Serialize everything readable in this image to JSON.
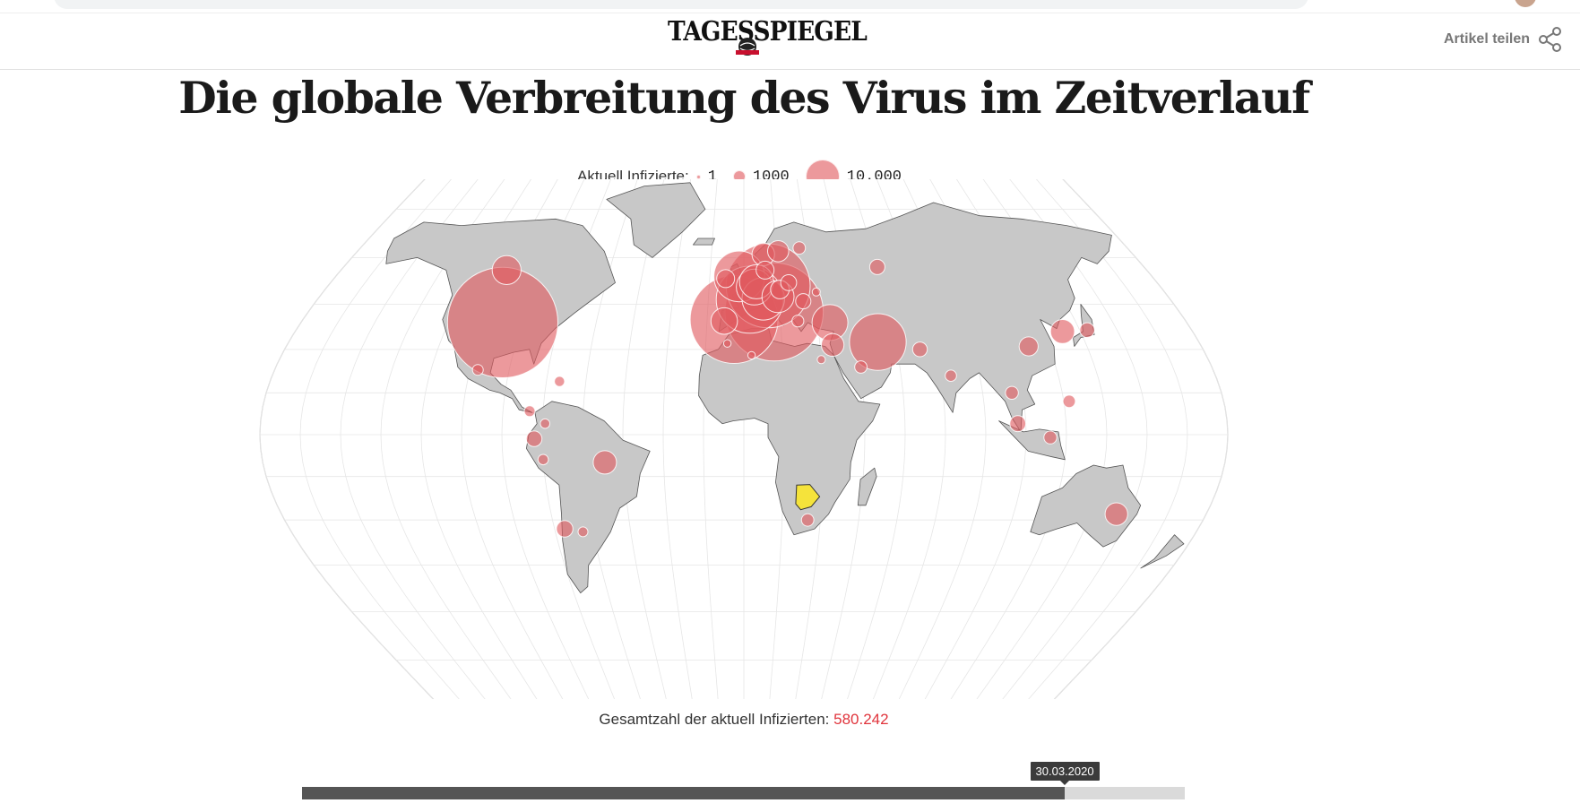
{
  "header": {
    "logo_text": "TAGESSPIEGEL",
    "share_label": "Artikel teilen"
  },
  "title": "Die globale Verbreitung des Virus im Zeitverlauf",
  "legend": {
    "label": "Aktuell Infizierte:",
    "items": [
      {
        "value": 1,
        "display": "1"
      },
      {
        "value": 1000,
        "display": "1000"
      },
      {
        "value": 10000,
        "display": "10.000"
      }
    ]
  },
  "map": {
    "land_color": "#c8c8c8",
    "land_stroke": "#555555",
    "bubble_color": "#e15a5f",
    "highlight_color": "#f5e33b",
    "highlight_country": "Botswana",
    "bubbles": [
      {
        "location": "USA",
        "lon": -98,
        "lat": 39,
        "infected": 95000
      },
      {
        "location": "Kanada",
        "lon": -106,
        "lat": 56,
        "infected": 6500
      },
      {
        "location": "Mexiko",
        "lon": -102,
        "lat": 23,
        "infected": 900
      },
      {
        "location": "Brasilien",
        "lon": -52,
        "lat": -10,
        "infected": 4200
      },
      {
        "location": "Ecuador",
        "lon": -78,
        "lat": -1.5,
        "infected": 1900
      },
      {
        "location": "Peru",
        "lon": -75,
        "lat": -9,
        "infected": 850
      },
      {
        "location": "Chile",
        "lon": -71,
        "lat": -33,
        "infected": 2100
      },
      {
        "location": "Argentinien",
        "lon": -64,
        "lat": -34,
        "infected": 750
      },
      {
        "location": "Kolumbien",
        "lon": -74,
        "lat": 4,
        "infected": 700
      },
      {
        "location": "Panama",
        "lon": -80,
        "lat": 8.5,
        "infected": 900
      },
      {
        "location": "Dominikanische Republik",
        "lon": -70,
        "lat": 19,
        "infected": 800
      },
      {
        "location": "Spanien",
        "lon": -4,
        "lat": 40,
        "infected": 60000
      },
      {
        "location": "Italien",
        "lon": 12.5,
        "lat": 42.5,
        "infected": 75000
      },
      {
        "location": "Frankreich",
        "lon": 2.5,
        "lat": 46.5,
        "infected": 35000
      },
      {
        "location": "Deutschland",
        "lon": 10.5,
        "lat": 51,
        "infected": 55000
      },
      {
        "location": "Großbritannien",
        "lon": -2,
        "lat": 54,
        "infected": 20000
      },
      {
        "location": "Schweiz",
        "lon": 8.2,
        "lat": 46.8,
        "infected": 14000
      },
      {
        "location": "Niederlande",
        "lon": 5.5,
        "lat": 52.3,
        "infected": 9000
      },
      {
        "location": "Belgien",
        "lon": 4.5,
        "lat": 50.6,
        "infected": 10000
      },
      {
        "location": "Österreich",
        "lon": 14.5,
        "lat": 47.5,
        "infected": 8000
      },
      {
        "location": "Portugal",
        "lon": -8,
        "lat": 39.5,
        "infected": 5500
      },
      {
        "location": "Norwegen",
        "lon": 9,
        "lat": 61,
        "infected": 4000
      },
      {
        "location": "Schweden",
        "lon": 16,
        "lat": 62,
        "infected": 3500
      },
      {
        "location": "Dänemark",
        "lon": 9.5,
        "lat": 56,
        "infected": 2500
      },
      {
        "location": "Irland",
        "lon": -8,
        "lat": 53.3,
        "infected": 2500
      },
      {
        "location": "Finnland",
        "lon": 26,
        "lat": 63,
        "infected": 1200
      },
      {
        "location": "Tschechien",
        "lon": 15.5,
        "lat": 49.8,
        "infected": 2700
      },
      {
        "location": "Polen",
        "lon": 19.5,
        "lat": 52,
        "infected": 2000
      },
      {
        "location": "Russland",
        "lon": 60,
        "lat": 57,
        "infected": 1800
      },
      {
        "location": "Türkei",
        "lon": 35,
        "lat": 39,
        "infected": 10000
      },
      {
        "location": "Israel",
        "lon": 35,
        "lat": 31.5,
        "infected": 4000
      },
      {
        "location": "Iran",
        "lon": 53,
        "lat": 32.5,
        "infected": 25000
      },
      {
        "location": "Saudi-Arabien",
        "lon": 45,
        "lat": 24,
        "infected": 1200
      },
      {
        "location": "Pakistan",
        "lon": 69,
        "lat": 30,
        "infected": 1700
      },
      {
        "location": "Indien",
        "lon": 79,
        "lat": 21,
        "infected": 1000
      },
      {
        "location": "China",
        "lon": 112,
        "lat": 31,
        "infected": 2800
      },
      {
        "location": "Südkorea",
        "lon": 127.8,
        "lat": 36,
        "infected": 4500
      },
      {
        "location": "Japan",
        "lon": 138,
        "lat": 36.5,
        "infected": 1700
      },
      {
        "location": "Philippinen",
        "lon": 122,
        "lat": 12,
        "infected": 1200
      },
      {
        "location": "Malaysia",
        "lon": 102,
        "lat": 4,
        "infected": 2000
      },
      {
        "location": "Thailand",
        "lon": 101,
        "lat": 15,
        "infected": 1300
      },
      {
        "location": "Indonesien",
        "lon": 114,
        "lat": -1,
        "infected": 1300
      },
      {
        "location": "Australien",
        "lon": 145,
        "lat": -28,
        "infected": 4000
      },
      {
        "location": "Südafrika",
        "lon": 25,
        "lat": -30,
        "infected": 1200
      },
      {
        "location": "Ägypten",
        "lon": 30,
        "lat": 26.5,
        "infected": 500
      },
      {
        "location": "Algerien",
        "lon": 3,
        "lat": 28,
        "infected": 450
      },
      {
        "location": "Marokko",
        "lon": -6.5,
        "lat": 32,
        "infected": 450
      },
      {
        "location": "Griechenland",
        "lon": 22,
        "lat": 39.5,
        "infected": 1100
      },
      {
        "location": "Rumänien",
        "lon": 25,
        "lat": 46,
        "infected": 1800
      },
      {
        "location": "Ukraine",
        "lon": 31,
        "lat": 49,
        "infected": 500
      }
    ]
  },
  "total": {
    "label": "Gesamtzahl der aktuell Infizierten:",
    "value": "580.242"
  },
  "timeline": {
    "current_date": "30.03.2020",
    "progress_fraction": 0.864
  }
}
